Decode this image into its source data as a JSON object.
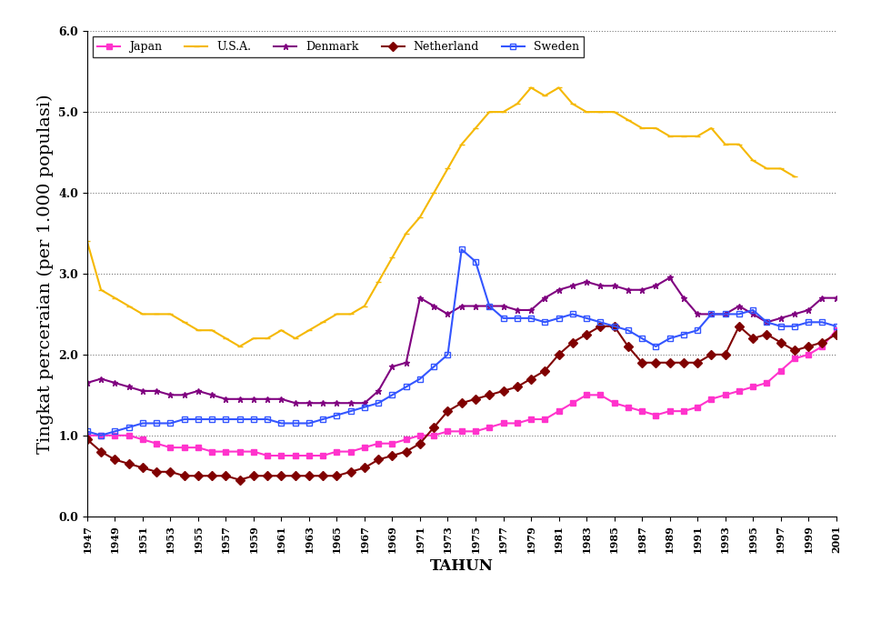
{
  "chart_data": {
    "type": "line",
    "x_label": "TAHUN",
    "y_label": "Tingkat perceraian (per 1.000 populasi)",
    "x": [
      1947,
      1948,
      1949,
      1950,
      1951,
      1952,
      1953,
      1954,
      1955,
      1956,
      1957,
      1958,
      1959,
      1960,
      1961,
      1962,
      1963,
      1964,
      1965,
      1966,
      1967,
      1968,
      1969,
      1970,
      1971,
      1972,
      1973,
      1974,
      1975,
      1976,
      1977,
      1978,
      1979,
      1980,
      1981,
      1982,
      1983,
      1984,
      1985,
      1986,
      1987,
      1988,
      1989,
      1990,
      1991,
      1992,
      1993,
      1994,
      1995,
      1996,
      1997,
      1998,
      1999,
      2000,
      2001
    ],
    "series": [
      {
        "name": "Japan",
        "color": "#ff33cc",
        "marker": "square",
        "values": [
          1.0,
          1.0,
          1.0,
          1.0,
          0.95,
          0.9,
          0.85,
          0.85,
          0.85,
          0.8,
          0.8,
          0.8,
          0.8,
          0.75,
          0.75,
          0.75,
          0.75,
          0.75,
          0.8,
          0.8,
          0.85,
          0.9,
          0.9,
          0.95,
          1.0,
          1.0,
          1.05,
          1.05,
          1.05,
          1.1,
          1.15,
          1.15,
          1.2,
          1.2,
          1.3,
          1.4,
          1.5,
          1.5,
          1.4,
          1.35,
          1.3,
          1.25,
          1.3,
          1.3,
          1.35,
          1.45,
          1.5,
          1.55,
          1.6,
          1.65,
          1.8,
          1.95,
          2.0,
          2.1,
          2.3
        ]
      },
      {
        "name": "U.S.A.",
        "color": "#f5b800",
        "marker": "dash",
        "values": [
          3.4,
          2.8,
          2.7,
          2.6,
          2.5,
          2.5,
          2.5,
          2.4,
          2.3,
          2.3,
          2.2,
          2.1,
          2.2,
          2.2,
          2.3,
          2.2,
          2.3,
          2.4,
          2.5,
          2.5,
          2.6,
          2.9,
          3.2,
          3.5,
          3.7,
          4.0,
          4.3,
          4.6,
          4.8,
          5.0,
          5.0,
          5.1,
          5.3,
          5.2,
          5.3,
          5.1,
          5.0,
          5.0,
          5.0,
          4.9,
          4.8,
          4.8,
          4.7,
          4.7,
          4.7,
          4.8,
          4.6,
          4.6,
          4.4,
          4.3,
          4.3,
          4.2,
          null,
          null,
          null
        ]
      },
      {
        "name": "Denmark",
        "color": "#800080",
        "marker": "star",
        "values": [
          1.65,
          1.7,
          1.65,
          1.6,
          1.55,
          1.55,
          1.5,
          1.5,
          1.55,
          1.5,
          1.45,
          1.45,
          1.45,
          1.45,
          1.45,
          1.4,
          1.4,
          1.4,
          1.4,
          1.4,
          1.4,
          1.55,
          1.85,
          1.9,
          2.7,
          2.6,
          2.5,
          2.6,
          2.6,
          2.6,
          2.6,
          2.55,
          2.55,
          2.7,
          2.8,
          2.85,
          2.9,
          2.85,
          2.85,
          2.8,
          2.8,
          2.85,
          2.95,
          2.7,
          2.5,
          2.5,
          2.5,
          2.6,
          2.5,
          2.4,
          2.45,
          2.5,
          2.55,
          2.7,
          2.7
        ]
      },
      {
        "name": "Netherland",
        "color": "#800000",
        "marker": "diamond",
        "values": [
          0.95,
          0.8,
          0.7,
          0.65,
          0.6,
          0.55,
          0.55,
          0.5,
          0.5,
          0.5,
          0.5,
          0.45,
          0.5,
          0.5,
          0.5,
          0.5,
          0.5,
          0.5,
          0.5,
          0.55,
          0.6,
          0.7,
          0.75,
          0.8,
          0.9,
          1.1,
          1.3,
          1.4,
          1.45,
          1.5,
          1.55,
          1.6,
          1.7,
          1.8,
          2.0,
          2.15,
          2.25,
          2.35,
          2.35,
          2.1,
          1.9,
          1.9,
          1.9,
          1.9,
          1.9,
          2.0,
          2.0,
          2.35,
          2.2,
          2.25,
          2.15,
          2.05,
          2.1,
          2.15,
          2.25
        ]
      },
      {
        "name": "Sweden",
        "color": "#3355ff",
        "marker": "open_square",
        "values": [
          1.05,
          1.0,
          1.05,
          1.1,
          1.15,
          1.15,
          1.15,
          1.2,
          1.2,
          1.2,
          1.2,
          1.2,
          1.2,
          1.2,
          1.15,
          1.15,
          1.15,
          1.2,
          1.25,
          1.3,
          1.35,
          1.4,
          1.5,
          1.6,
          1.7,
          1.85,
          2.0,
          3.3,
          3.15,
          2.6,
          2.45,
          2.45,
          2.45,
          2.4,
          2.45,
          2.5,
          2.45,
          2.4,
          2.35,
          2.3,
          2.2,
          2.1,
          2.2,
          2.25,
          2.3,
          2.5,
          2.5,
          2.5,
          2.55,
          2.4,
          2.35,
          2.35,
          2.4,
          2.4,
          2.35
        ]
      }
    ],
    "xlim": [
      1947,
      2001
    ],
    "xticks": [
      1947,
      1949,
      1951,
      1953,
      1955,
      1957,
      1959,
      1961,
      1963,
      1965,
      1967,
      1969,
      1971,
      1973,
      1975,
      1977,
      1979,
      1981,
      1983,
      1985,
      1987,
      1989,
      1991,
      1993,
      1995,
      1997,
      1999,
      2001
    ],
    "ylim": [
      0,
      6
    ],
    "yticks": [
      {
        "value": 0,
        "label": "0.0"
      },
      {
        "value": 1,
        "label": "1.0"
      },
      {
        "value": 2,
        "label": "2.0"
      },
      {
        "value": 3,
        "label": "3.0"
      },
      {
        "value": 4,
        "label": "4.0"
      },
      {
        "value": 5,
        "label": "5.0"
      },
      {
        "value": 6,
        "label": "6.0"
      }
    ],
    "grid": true,
    "legend": "upper left"
  }
}
